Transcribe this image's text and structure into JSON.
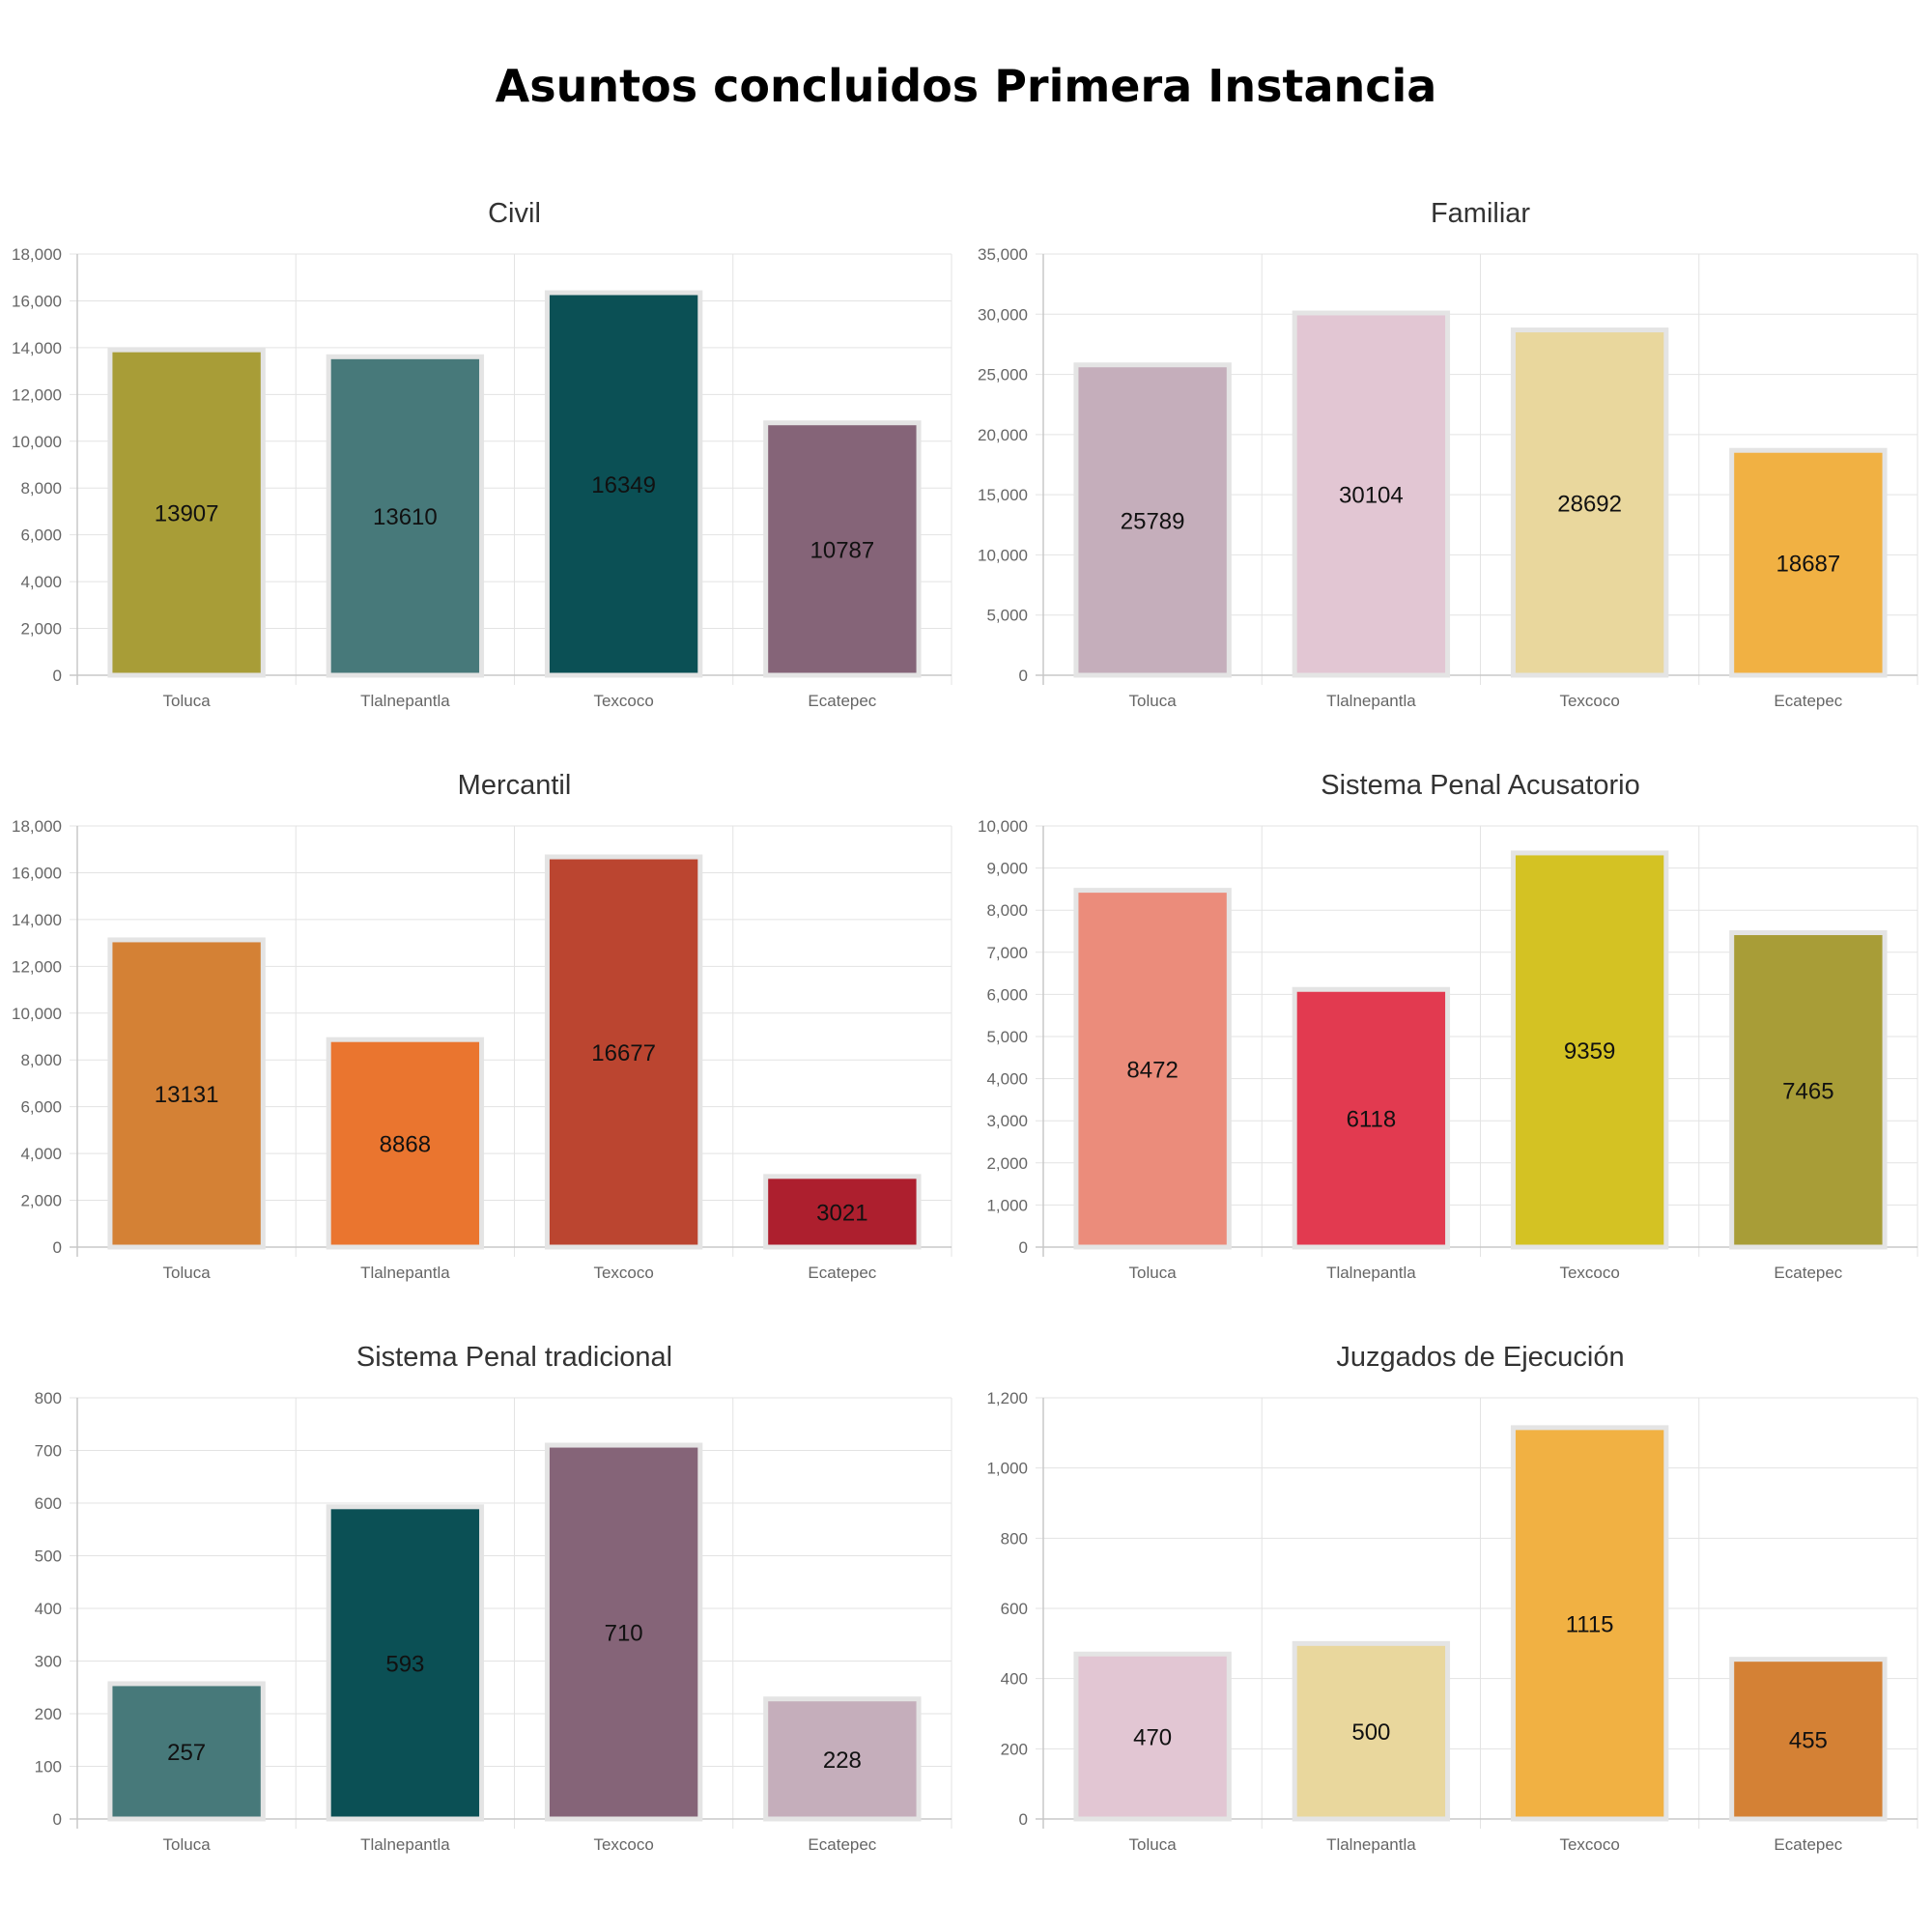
{
  "page_title": "Asuntos concluidos Primera Instancia",
  "chart_data": [
    {
      "type": "bar",
      "title": "Civil",
      "categories": [
        "Toluca",
        "Tlalnepantla",
        "Texcoco",
        "Ecatepec"
      ],
      "values": [
        13907,
        13610,
        16349,
        10787
      ],
      "colors": [
        "#a89d37",
        "#47797a",
        "#0b5055",
        "#856478"
      ],
      "ylim": [
        0,
        18000
      ],
      "yticks": [
        0,
        2000,
        4000,
        6000,
        8000,
        10000,
        12000,
        14000,
        16000,
        18000
      ],
      "ytick_labels": [
        "0",
        "2,000",
        "4,000",
        "6,000",
        "8,000",
        "10,000",
        "12,000",
        "14,000",
        "16,000",
        "18,000"
      ],
      "data_labels": [
        "13907",
        "13610",
        "16349",
        "10787"
      ],
      "grid": true
    },
    {
      "type": "bar",
      "title": "Familiar",
      "categories": [
        "Toluca",
        "Tlalnepantla",
        "Texcoco",
        "Ecatepec"
      ],
      "values": [
        25789,
        30104,
        28692,
        18687
      ],
      "colors": [
        "#c5aebb",
        "#e2c6d3",
        "#e9d79d",
        "#f1b143"
      ],
      "ylim": [
        0,
        35000
      ],
      "yticks": [
        0,
        5000,
        10000,
        15000,
        20000,
        25000,
        30000,
        35000
      ],
      "ytick_labels": [
        "0",
        "5,000",
        "10,000",
        "15,000",
        "20,000",
        "25,000",
        "30,000",
        "35,000"
      ],
      "data_labels": [
        "25789",
        "30104",
        "28692",
        "18687"
      ],
      "grid": true
    },
    {
      "type": "bar",
      "title": "Mercantil",
      "categories": [
        "Toluca",
        "Tlalnepantla",
        "Texcoco",
        "Ecatepec"
      ],
      "values": [
        13131,
        8868,
        16677,
        3021
      ],
      "colors": [
        "#d48135",
        "#ea752f",
        "#bb4530",
        "#ad1f2e"
      ],
      "ylim": [
        0,
        18000
      ],
      "yticks": [
        0,
        2000,
        4000,
        6000,
        8000,
        10000,
        12000,
        14000,
        16000,
        18000
      ],
      "ytick_labels": [
        "0",
        "2,000",
        "4,000",
        "6,000",
        "8,000",
        "10,000",
        "12,000",
        "14,000",
        "16,000",
        "18,000"
      ],
      "data_labels": [
        "13131",
        "8868",
        "16677",
        "3021"
      ],
      "grid": true
    },
    {
      "type": "bar",
      "title": "Sistema Penal Acusatorio",
      "categories": [
        "Toluca",
        "Tlalnepantla",
        "Texcoco",
        "Ecatepec"
      ],
      "values": [
        8472,
        6118,
        9359,
        7465
      ],
      "colors": [
        "#eb8c7b",
        "#e23a50",
        "#d4c223",
        "#a89d37"
      ],
      "ylim": [
        0,
        10000
      ],
      "yticks": [
        0,
        1000,
        2000,
        3000,
        4000,
        5000,
        6000,
        7000,
        8000,
        9000,
        10000
      ],
      "ytick_labels": [
        "0",
        "1,000",
        "2,000",
        "3,000",
        "4,000",
        "5,000",
        "6,000",
        "7,000",
        "8,000",
        "9,000",
        "10,000"
      ],
      "data_labels": [
        "8472",
        "6118",
        "9359",
        "7465"
      ],
      "grid": true
    },
    {
      "type": "bar",
      "title": "Sistema Penal tradicional",
      "categories": [
        "Toluca",
        "Tlalnepantla",
        "Texcoco",
        "Ecatepec"
      ],
      "values": [
        257,
        593,
        710,
        228
      ],
      "colors": [
        "#47797a",
        "#0b5055",
        "#856478",
        "#c5aebb"
      ],
      "ylim": [
        0,
        800
      ],
      "yticks": [
        0,
        100,
        200,
        300,
        400,
        500,
        600,
        700,
        800
      ],
      "ytick_labels": [
        "0",
        "100",
        "200",
        "300",
        "400",
        "500",
        "600",
        "700",
        "800"
      ],
      "data_labels": [
        "257",
        "593",
        "710",
        "228"
      ],
      "grid": true
    },
    {
      "type": "bar",
      "title": "Juzgados de Ejecución",
      "categories": [
        "Toluca",
        "Tlalnepantla",
        "Texcoco",
        "Ecatepec"
      ],
      "values": [
        470,
        500,
        1115,
        455
      ],
      "colors": [
        "#e2c6d3",
        "#e9d79d",
        "#f1b143",
        "#d48135"
      ],
      "ylim": [
        0,
        1200
      ],
      "yticks": [
        0,
        200,
        400,
        600,
        800,
        1000,
        1200
      ],
      "ytick_labels": [
        "0",
        "200",
        "400",
        "600",
        "800",
        "1,000",
        "1,200"
      ],
      "data_labels": [
        "470",
        "500",
        "1115",
        "455"
      ],
      "grid": true
    }
  ]
}
